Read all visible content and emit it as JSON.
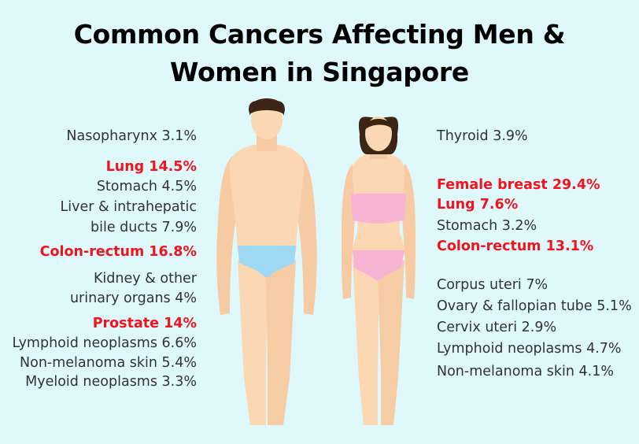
{
  "title_line1": "Common Cancers Affecting Men &",
  "title_line2": "Women in Singapore",
  "colors": {
    "background": "#dff8fb",
    "highlight": "#f0141e",
    "text": "#333333",
    "male_underwear": "#9fd8f2",
    "female_clothing": "#f7b3d3",
    "skin": "#fbd8b3"
  },
  "men": {
    "nasopharynx": "Nasopharynx 3.1%",
    "lung": "Lung 14.5%",
    "stomach": "Stomach 4.5%",
    "liver_1": "Liver & intrahepatic",
    "liver_2": "bile ducts 7.9%",
    "colon": "Colon-rectum 16.8%",
    "kidney_1": "Kidney & other",
    "kidney_2": "urinary organs 4%",
    "prostate": "Prostate 14%",
    "lymphoid": "Lymphoid neoplasms 6.6%",
    "skin": "Non-melanoma skin 5.4%",
    "myeloid": "Myeloid neoplasms 3.3%"
  },
  "women": {
    "thyroid": "Thyroid 3.9%",
    "breast": "Female breast 29.4%",
    "lung": "Lung 7.6%",
    "stomach": "Stomach 3.2%",
    "colon": "Colon-rectum 13.1%",
    "corpus": "Corpus uteri 7%",
    "ovary": "Ovary & fallopian tube 5.1%",
    "cervix": "Cervix uteri 2.9%",
    "lymphoid": "Lymphoid neoplasms 4.7%",
    "skin": "Non-melanoma skin 4.1%"
  }
}
